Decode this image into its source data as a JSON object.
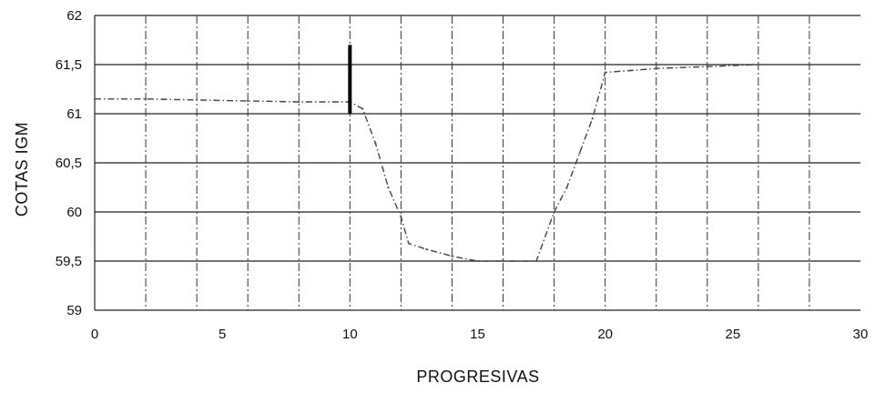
{
  "chart_data": {
    "type": "line",
    "xlabel": "PROGRESIVAS",
    "ylabel": "COTAS IGM",
    "xlim": [
      0,
      30
    ],
    "ylim": [
      59,
      62
    ],
    "x_ticks": [
      0,
      5,
      10,
      15,
      20,
      25,
      30
    ],
    "y_ticks": [
      {
        "value": 59,
        "label": "59"
      },
      {
        "value": 59.5,
        "label": "59,5"
      },
      {
        "value": 60,
        "label": "60"
      },
      {
        "value": 60.5,
        "label": "60,5"
      },
      {
        "value": 61,
        "label": "61"
      },
      {
        "value": 61.5,
        "label": "61,5"
      },
      {
        "value": 62,
        "label": "62"
      }
    ],
    "grid": true,
    "series": [
      {
        "x": [
          0,
          2,
          4,
          6,
          8,
          10,
          10.5,
          11,
          11.5,
          12,
          12.3,
          13,
          14,
          15,
          16,
          17.3,
          18,
          18.5,
          19,
          19.5,
          20,
          21,
          22,
          24,
          26
        ],
        "y": [
          61.15,
          61.15,
          61.14,
          61.13,
          61.12,
          61.12,
          61.05,
          60.7,
          60.25,
          59.95,
          59.68,
          59.62,
          59.55,
          59.5,
          59.5,
          59.5,
          60.0,
          60.25,
          60.6,
          60.95,
          61.42,
          61.44,
          61.46,
          61.48,
          61.5
        ]
      }
    ],
    "annotations": [
      {
        "type": "vertical-marker",
        "x": 10,
        "y_from": 61.0,
        "y_to": 61.7
      }
    ]
  }
}
